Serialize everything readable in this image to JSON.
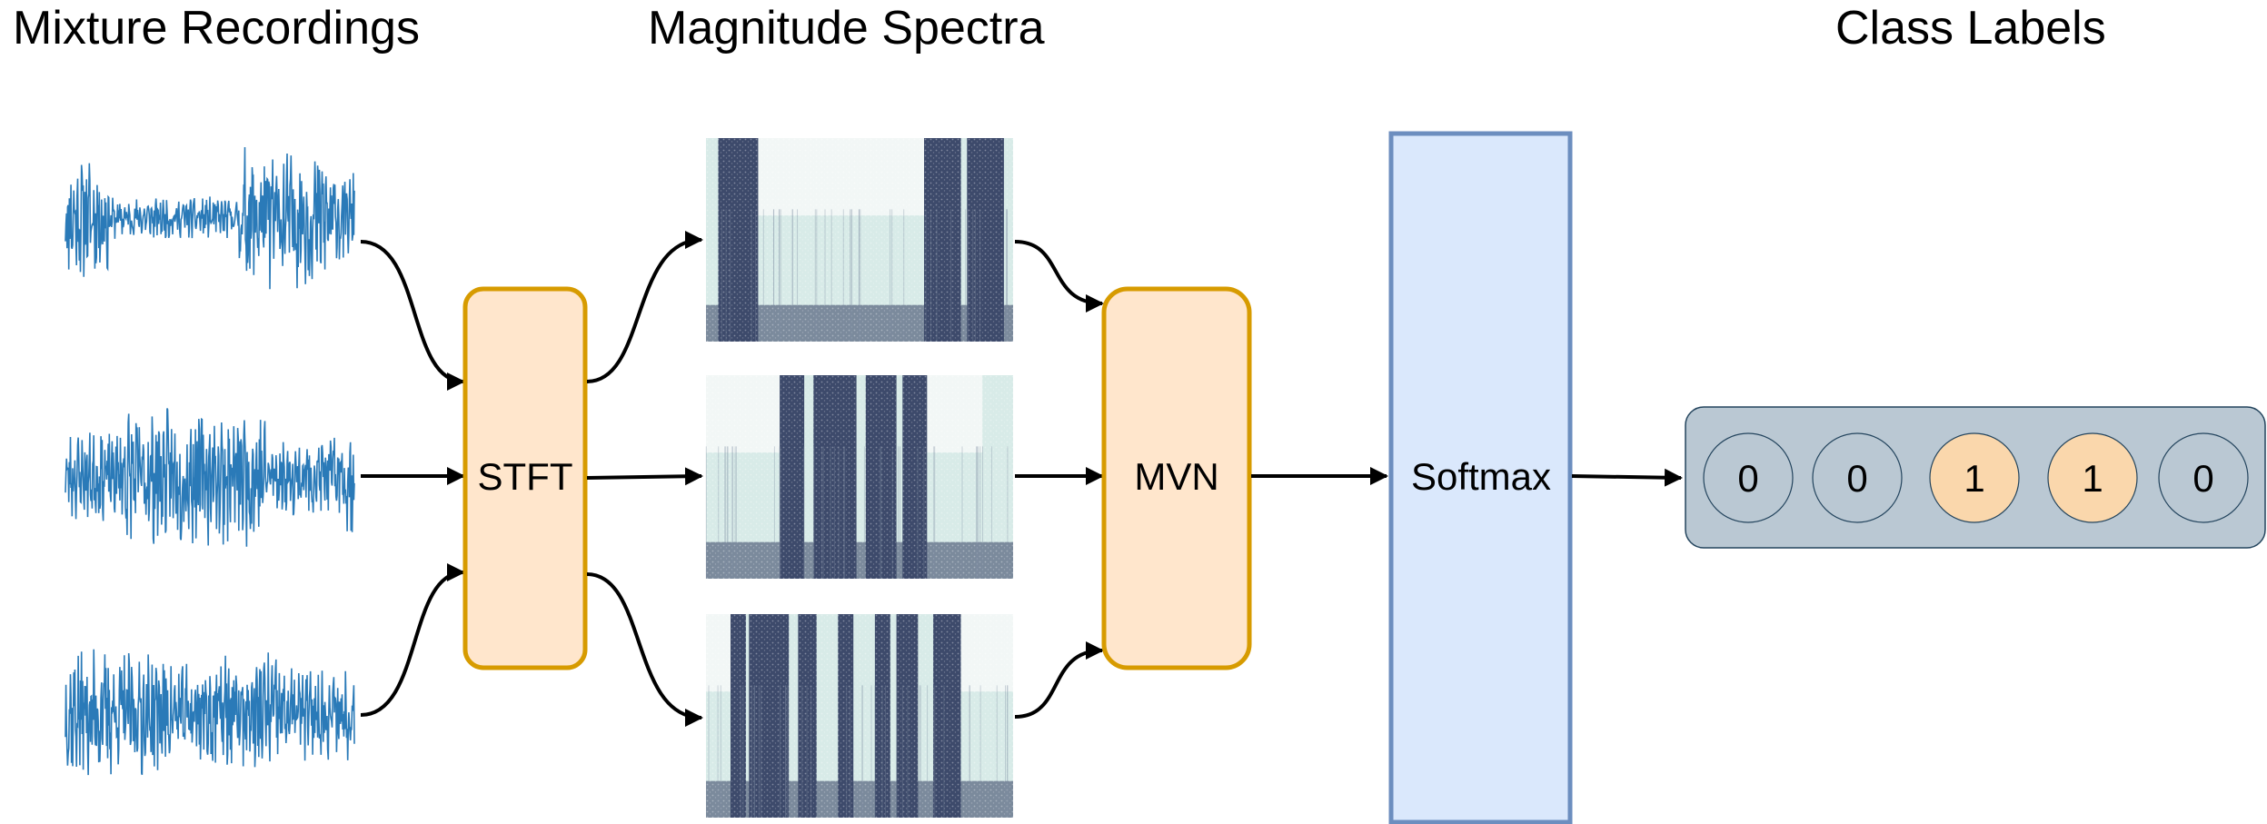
{
  "headings": {
    "mixture": "Mixture Recordings",
    "spectra": "Magnitude Spectra",
    "labels": "Class Labels"
  },
  "blocks": {
    "stft": "STFT",
    "mvn": "MVN",
    "softmax": "Softmax"
  },
  "class_labels": [
    {
      "value": "0",
      "active": false
    },
    {
      "value": "0",
      "active": false
    },
    {
      "value": "1",
      "active": true
    },
    {
      "value": "1",
      "active": true
    },
    {
      "value": "0",
      "active": false
    }
  ],
  "colors": {
    "waveform": "#2a7ab8",
    "block_fill": "#ffe6cc",
    "block_stroke": "#d79b00",
    "softmax_fill": "#dae8fc",
    "softmax_stroke": "#6c8ebf",
    "label_panel_fill": "#bac8d3",
    "label_panel_stroke": "#23445d",
    "active_circle": "#fad7ac",
    "inactive_circle": "#bac8d3",
    "spec_light": "#d8ebe8",
    "spec_dark": "#3d4a6b",
    "arrow": "#000000"
  }
}
